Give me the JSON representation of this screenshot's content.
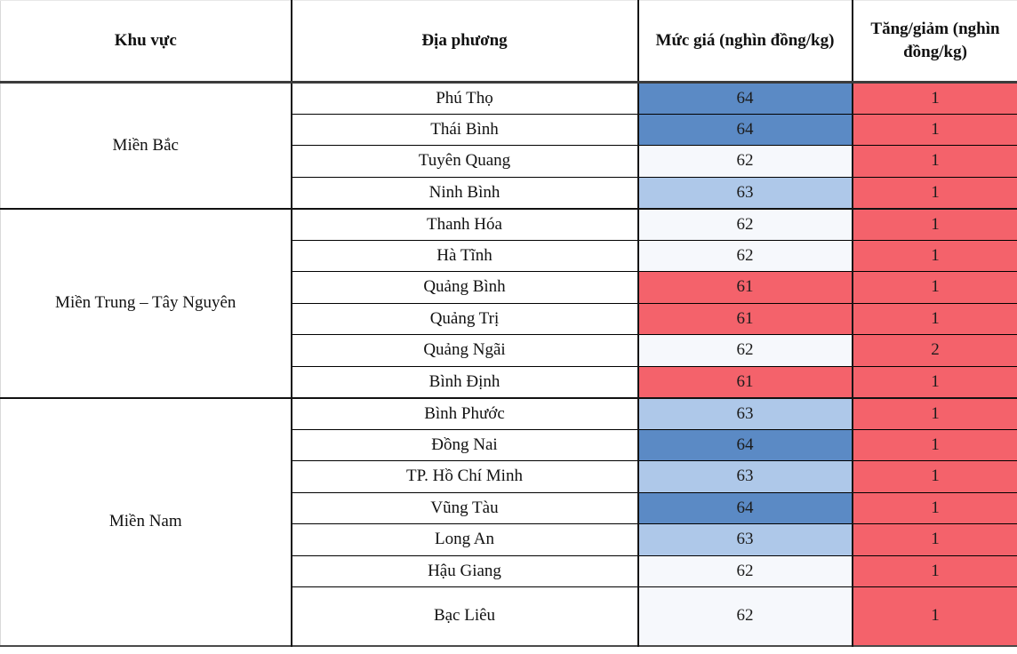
{
  "table": {
    "headers": {
      "region": "Khu vực",
      "locality": "Địa phương",
      "price": "Mức giá (nghìn đồng/kg)",
      "change": "Tăng/giảm (nghìn đồng/kg)"
    },
    "regions": [
      {
        "label": "Miền Bắc"
      },
      {
        "label": "Miền Trung – Tây Nguyên"
      },
      {
        "label": "Miền Nam"
      }
    ],
    "colors": {
      "price_64": "#5b8ac5",
      "price_63": "#aec8e9",
      "price_62": "#f6f8fc",
      "price_61": "#f4626b",
      "change_red": "#f4626b"
    },
    "rows": [
      {
        "locality": "Phú Thọ",
        "price": "64",
        "change": "1",
        "price_color": "#5b8ac5",
        "change_color": "#f4626b"
      },
      {
        "locality": "Thái Bình",
        "price": "64",
        "change": "1",
        "price_color": "#5b8ac5",
        "change_color": "#f4626b"
      },
      {
        "locality": "Tuyên Quang",
        "price": "62",
        "change": "1",
        "price_color": "#f6f8fc",
        "change_color": "#f4626b"
      },
      {
        "locality": "Ninh Bình",
        "price": "63",
        "change": "1",
        "price_color": "#aec8e9",
        "change_color": "#f4626b"
      },
      {
        "locality": "Thanh Hóa",
        "price": "62",
        "change": "1",
        "price_color": "#f6f8fc",
        "change_color": "#f4626b"
      },
      {
        "locality": "Hà Tĩnh",
        "price": "62",
        "change": "1",
        "price_color": "#f6f8fc",
        "change_color": "#f4626b"
      },
      {
        "locality": "Quảng Bình",
        "price": "61",
        "change": "1",
        "price_color": "#f4626b",
        "change_color": "#f4626b"
      },
      {
        "locality": "Quảng Trị",
        "price": "61",
        "change": "1",
        "price_color": "#f4626b",
        "change_color": "#f4626b"
      },
      {
        "locality": "Quảng Ngãi",
        "price": "62",
        "change": "2",
        "price_color": "#f6f8fc",
        "change_color": "#f4626b"
      },
      {
        "locality": "Bình Định",
        "price": "61",
        "change": "1",
        "price_color": "#f4626b",
        "change_color": "#f4626b"
      },
      {
        "locality": "Bình Phước",
        "price": "63",
        "change": "1",
        "price_color": "#aec8e9",
        "change_color": "#f4626b"
      },
      {
        "locality": "Đồng Nai",
        "price": "64",
        "change": "1",
        "price_color": "#5b8ac5",
        "change_color": "#f4626b"
      },
      {
        "locality": "TP. Hồ Chí Minh",
        "price": "63",
        "change": "1",
        "price_color": "#aec8e9",
        "change_color": "#f4626b"
      },
      {
        "locality": "Vũng Tàu",
        "price": "64",
        "change": "1",
        "price_color": "#5b8ac5",
        "change_color": "#f4626b"
      },
      {
        "locality": "Long An",
        "price": "63",
        "change": "1",
        "price_color": "#aec8e9",
        "change_color": "#f4626b"
      },
      {
        "locality": "Hậu Giang",
        "price": "62",
        "change": "1",
        "price_color": "#f6f8fc",
        "change_color": "#f4626b"
      },
      {
        "locality": "Bạc Liêu",
        "price": "62",
        "change": "1",
        "price_color": "#f6f8fc",
        "change_color": "#f4626b"
      }
    ]
  },
  "chart_data": {
    "type": "table",
    "title": "",
    "columns": [
      "Khu vực",
      "Địa phương",
      "Mức giá (nghìn đồng/kg)",
      "Tăng/giảm (nghìn đồng/kg)"
    ],
    "rows": [
      [
        "Miền Bắc",
        "Phú Thọ",
        64,
        1
      ],
      [
        "Miền Bắc",
        "Thái Bình",
        64,
        1
      ],
      [
        "Miền Bắc",
        "Tuyên Quang",
        62,
        1
      ],
      [
        "Miền Bắc",
        "Ninh Bình",
        63,
        1
      ],
      [
        "Miền Trung – Tây Nguyên",
        "Thanh Hóa",
        62,
        1
      ],
      [
        "Miền Trung – Tây Nguyên",
        "Hà Tĩnh",
        62,
        1
      ],
      [
        "Miền Trung – Tây Nguyên",
        "Quảng Bình",
        61,
        1
      ],
      [
        "Miền Trung – Tây Nguyên",
        "Quảng Trị",
        61,
        1
      ],
      [
        "Miền Trung – Tây Nguyên",
        "Quảng Ngãi",
        62,
        2
      ],
      [
        "Miền Trung – Tây Nguyên",
        "Bình Định",
        61,
        1
      ],
      [
        "Miền Nam",
        "Bình Phước",
        63,
        1
      ],
      [
        "Miền Nam",
        "Đồng Nai",
        64,
        1
      ],
      [
        "Miền Nam",
        "TP. Hồ Chí Minh",
        63,
        1
      ],
      [
        "Miền Nam",
        "Vũng Tàu",
        64,
        1
      ],
      [
        "Miền Nam",
        "Long An",
        63,
        1
      ],
      [
        "Miền Nam",
        "Hậu Giang",
        62,
        1
      ],
      [
        "Miền Nam",
        "Bạc Liêu",
        62,
        1
      ]
    ],
    "layout_hints": {
      "price_color_scale": {
        "64": "#5b8ac5",
        "63": "#aec8e9",
        "62": "#f6f8fc",
        "61": "#f4626b"
      },
      "change_column_color": "#f4626b",
      "merged_region_cells": true
    }
  }
}
